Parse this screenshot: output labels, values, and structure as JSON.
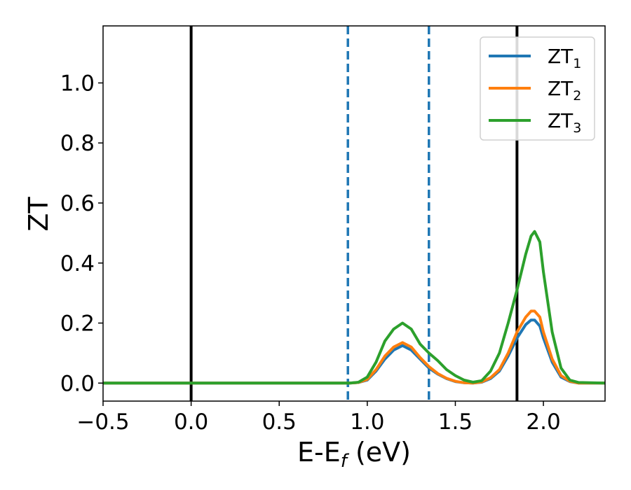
{
  "chart_data": {
    "type": "line",
    "xlabel": "E-E",
    "xlabel_sub": "f",
    "xlabel_unit": " (eV)",
    "ylabel": "ZT",
    "xlim": [
      -0.5,
      2.35
    ],
    "ylim": [
      -0.06,
      1.19
    ],
    "xticks": [
      -0.5,
      0.0,
      0.5,
      1.0,
      1.5,
      2.0
    ],
    "xtick_labels": [
      "−0.5",
      "0.0",
      "0.5",
      "1.0",
      "1.5",
      "2.0"
    ],
    "yticks": [
      0.0,
      0.2,
      0.4,
      0.6,
      0.8,
      1.0
    ],
    "ytick_labels": [
      "0.0",
      "0.2",
      "0.4",
      "0.6",
      "0.8",
      "1.0"
    ],
    "grid": false,
    "legend_position": "top-right",
    "vertical_lines": [
      {
        "x": 0.0,
        "style": "solid",
        "color": "#000000"
      },
      {
        "x": 1.85,
        "style": "solid",
        "color": "#000000"
      },
      {
        "x": 0.89,
        "style": "dashed",
        "color": "#1f77b4"
      },
      {
        "x": 1.35,
        "style": "dashed",
        "color": "#1f77b4"
      }
    ],
    "series": [
      {
        "name": "ZT",
        "name_sub": "1",
        "color": "#1f77b4",
        "x": [
          -0.5,
          0.0,
          0.5,
          0.85,
          0.9,
          0.95,
          1.0,
          1.05,
          1.1,
          1.15,
          1.2,
          1.25,
          1.3,
          1.35,
          1.4,
          1.45,
          1.5,
          1.55,
          1.6,
          1.65,
          1.7,
          1.75,
          1.8,
          1.85,
          1.9,
          1.93,
          1.95,
          1.98,
          2.0,
          2.05,
          2.1,
          2.15,
          2.2,
          2.35
        ],
        "y": [
          0.0,
          0.0,
          0.0,
          0.0,
          0.0,
          0.002,
          0.01,
          0.04,
          0.08,
          0.11,
          0.125,
          0.11,
          0.08,
          0.05,
          0.03,
          0.015,
          0.005,
          0.001,
          0.0,
          0.003,
          0.015,
          0.04,
          0.09,
          0.15,
          0.195,
          0.21,
          0.21,
          0.19,
          0.15,
          0.07,
          0.02,
          0.005,
          0.0,
          0.0
        ]
      },
      {
        "name": "ZT",
        "name_sub": "2",
        "color": "#ff7f0e",
        "x": [
          -0.5,
          0.0,
          0.5,
          0.85,
          0.9,
          0.95,
          1.0,
          1.05,
          1.1,
          1.15,
          1.2,
          1.25,
          1.3,
          1.35,
          1.4,
          1.45,
          1.5,
          1.55,
          1.6,
          1.65,
          1.7,
          1.75,
          1.8,
          1.85,
          1.9,
          1.93,
          1.95,
          1.98,
          2.0,
          2.05,
          2.1,
          2.15,
          2.2,
          2.35
        ],
        "y": [
          0.0,
          0.0,
          0.0,
          0.0,
          0.0,
          0.002,
          0.012,
          0.045,
          0.09,
          0.12,
          0.135,
          0.12,
          0.085,
          0.055,
          0.032,
          0.016,
          0.006,
          0.001,
          0.0,
          0.004,
          0.018,
          0.045,
          0.1,
          0.17,
          0.22,
          0.24,
          0.24,
          0.22,
          0.17,
          0.08,
          0.025,
          0.006,
          0.0,
          0.0
        ]
      },
      {
        "name": "ZT",
        "name_sub": "3",
        "color": "#2ca02c",
        "x": [
          -0.5,
          0.0,
          0.5,
          0.85,
          0.9,
          0.95,
          1.0,
          1.05,
          1.1,
          1.15,
          1.2,
          1.25,
          1.3,
          1.35,
          1.4,
          1.45,
          1.5,
          1.55,
          1.6,
          1.65,
          1.7,
          1.75,
          1.8,
          1.85,
          1.9,
          1.93,
          1.95,
          1.98,
          2.0,
          2.05,
          2.1,
          2.15,
          2.2,
          2.35
        ],
        "y": [
          0.0,
          0.0,
          0.0,
          0.0,
          0.0,
          0.003,
          0.02,
          0.07,
          0.14,
          0.18,
          0.2,
          0.18,
          0.13,
          0.1,
          0.075,
          0.045,
          0.025,
          0.01,
          0.003,
          0.008,
          0.04,
          0.1,
          0.2,
          0.31,
          0.43,
          0.49,
          0.505,
          0.47,
          0.37,
          0.17,
          0.05,
          0.01,
          0.002,
          0.0
        ]
      }
    ]
  }
}
